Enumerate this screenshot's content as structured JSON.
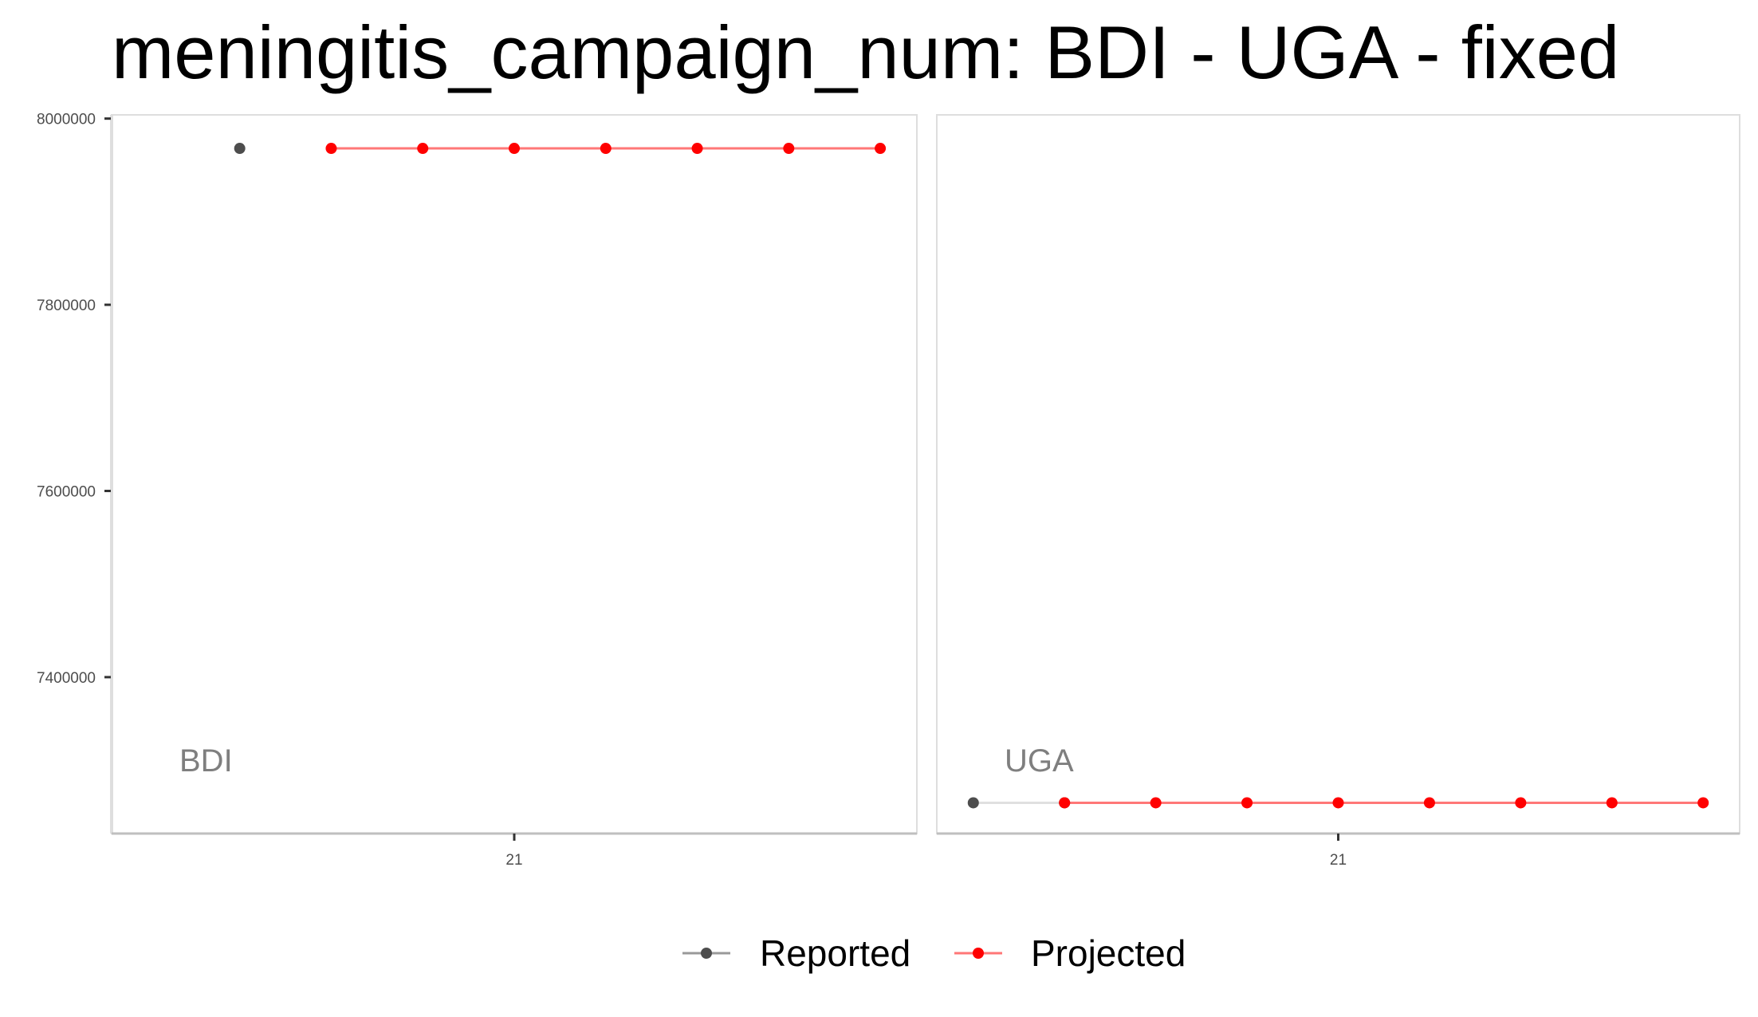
{
  "chart_data": {
    "type": "line",
    "title": "meningitis_campaign_num: BDI - UGA - fixed",
    "xlabel": "",
    "ylabel": "",
    "ylim": [
      7232000,
      8004000
    ],
    "yticks": [
      7400000,
      7600000,
      7800000,
      8000000
    ],
    "ytick_labels": [
      "7400000",
      "7600000",
      "7800000",
      "8000000"
    ],
    "xtick_label": "21",
    "grid": false,
    "legend_position": "bottom",
    "legend": [
      {
        "name": "Reported",
        "color": "#4d4d4d",
        "line_color": "#999999"
      },
      {
        "name": "Projected",
        "color": "#ff0000",
        "line_color": "#ff7777"
      }
    ],
    "panels": [
      {
        "label": "BDI",
        "x_range": [
          16.6,
          25.4
        ],
        "xtick": 21,
        "series": [
          {
            "name": "Reported",
            "x": [
              18
            ],
            "y": [
              7968000
            ]
          },
          {
            "name": "Projected",
            "x": [
              19,
              20,
              21,
              22,
              23,
              24,
              25
            ],
            "y": [
              7968000,
              7968000,
              7968000,
              7968000,
              7968000,
              7968000,
              7968000
            ]
          }
        ]
      },
      {
        "label": "UGA",
        "x_range": [
          16.6,
          25.4
        ],
        "xtick": 21,
        "series": [
          {
            "name": "Reported",
            "x": [
              17,
              18
            ],
            "y": [
              7265000,
              7265000
            ]
          },
          {
            "name": "Projected",
            "x": [
              18,
              19,
              20,
              21,
              22,
              23,
              24,
              25
            ],
            "y": [
              7265000,
              7265000,
              7265000,
              7265000,
              7265000,
              7265000,
              7265000,
              7265000
            ]
          }
        ]
      }
    ]
  }
}
